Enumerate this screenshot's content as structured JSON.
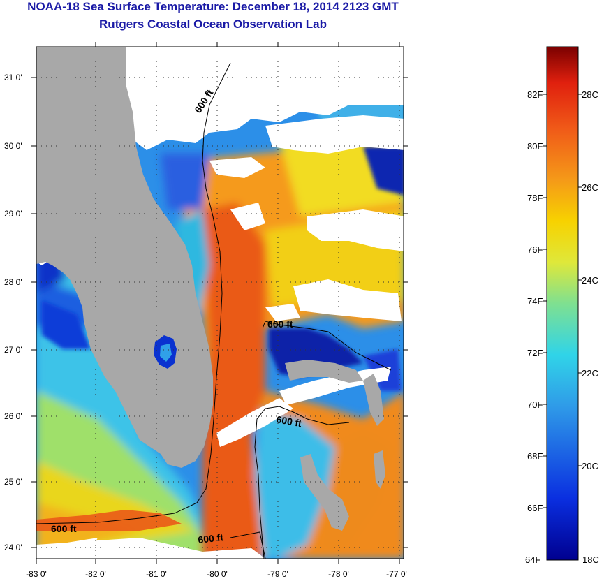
{
  "title": {
    "line1": "NOAA-18 Sea Surface Temperature:  December 18, 2014 2123 GMT",
    "line2": "Rutgers Coastal Ocean Observation Lab"
  },
  "map": {
    "lat_ticks": [
      "31 0'",
      "30 0'",
      "29 0'",
      "28 0'",
      "27 0'",
      "26 0'",
      "25 0'",
      "24 0'"
    ],
    "lon_ticks": [
      "-83 0'",
      "-82 0'",
      "-81 0'",
      "-80 0'",
      "-79 0'",
      "-78 0'",
      "-77 0'"
    ],
    "contour_labels": [
      "600 ft",
      "600 ft",
      "600 ft",
      "600 ft",
      "600 ft"
    ],
    "colors": {
      "land": "#a8a8a8",
      "cloud": "#ffffff",
      "warm": "#e8541a",
      "warm_orange": "#f7941d",
      "yellow": "#f2d400",
      "cyan": "#35c6e6",
      "blue": "#0a3fd6",
      "navy": "#06107a"
    }
  },
  "colorbar": {
    "f_labels": [
      "82F",
      "80F",
      "78F",
      "76F",
      "74F",
      "72F",
      "70F",
      "68F",
      "66F",
      "64F"
    ],
    "c_labels": [
      "28C",
      "26C",
      "24C",
      "22C",
      "20C",
      "18C"
    ]
  }
}
